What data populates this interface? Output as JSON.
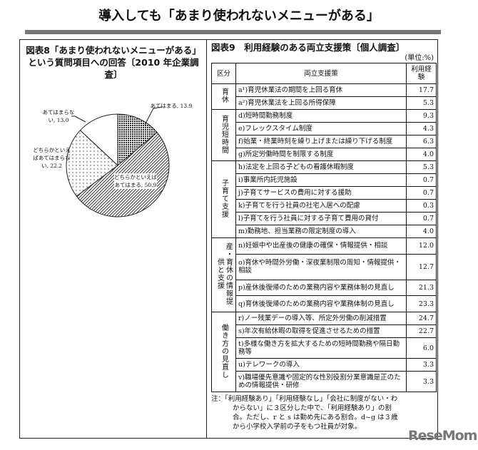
{
  "page_title": "導入しても「あまり使われないメニューがある」",
  "left": {
    "title": "図表8「あまり使われないメニューがある」という質問項目への回答〔2010 年企業調査〕"
  },
  "chart_data": {
    "type": "pie",
    "title": "図表8「あまり使われないメニューがある」という質問項目への回答〔2010 年企業調査〕",
    "slices": [
      {
        "label": "あてはまる",
        "value": 13.9,
        "text": "あてはまる, 13.9",
        "pattern": "crosshatch"
      },
      {
        "label": "どちらかといえばあてはまる",
        "value": 50.9,
        "text": "どちらかといえばあてはまる, 50.9",
        "pattern": "diagonal"
      },
      {
        "label": "どちらかといえばあてはまらない",
        "value": 22.2,
        "text": "どちらかといえばあてはまらない, 22.2",
        "pattern": "dots"
      },
      {
        "label": "あてはまらない",
        "value": 13.0,
        "text": "あてはまらない, 13.0",
        "pattern": "none"
      }
    ]
  },
  "right": {
    "title": "図表9　利用経験のある両立支援策〔個人調査〕",
    "unit": "(単位:%)",
    "headers": [
      "区分",
      "両立支援策",
      "利用経験"
    ],
    "groups": [
      {
        "name": "育休",
        "rows": [
          [
            "a¹)育児休業法の期間を上回る育休",
            "17.7"
          ],
          [
            "a²)育児休業法を上回る所得保障",
            "5.3"
          ]
        ]
      },
      {
        "name": "育児短時間",
        "rows": [
          [
            "d)短時間勤務制度",
            "9.3"
          ],
          [
            "e)フレックスタイム制度",
            "4.3"
          ],
          [
            "f)始業・終業時刻を繰り上げまたは繰り下げる制度",
            "6.3"
          ],
          [
            "g)所定労働時間を制限する制度",
            "4.0"
          ]
        ]
      },
      {
        "name": "子育て支援",
        "rows": [
          [
            "h)法定を上回る子どもの看護休暇制度",
            "5.3"
          ],
          [
            "i)事業所内託児施設",
            "0.7"
          ],
          [
            "j)子育てサービスの費用に対する援助",
            "0.7"
          ],
          [
            "k)子育てを行う社員の社宅入居への配慮",
            "0.3"
          ],
          [
            "l)子育てを行う社員に対する子育て費用の貸付",
            "0.7"
          ],
          [
            "m)勤務地、担当業務の限定制度の導入",
            "4.0"
          ]
        ]
      },
      {
        "name": "産・育休の情報提供と支援",
        "rows": [
          [
            "n)妊娠中や出産後の健康の確保・情報提供・相談",
            "12.0"
          ],
          [
            "o)育休や時間外労働・深夜業制限の周知・情報提供・相談",
            "12.7"
          ],
          [
            "p)産休後復帰のための業務内容や業務体制の見直し",
            "21.3"
          ],
          [
            "q)育休後復帰のための業務内容や業務体制の見直し",
            "23.3"
          ]
        ]
      },
      {
        "name": "働き方の見直し",
        "rows": [
          [
            "r)ノー残業デーの導入等、所定外労働の削減措置",
            "24.7"
          ],
          [
            "s)年次有給休暇の取得を促進させるための措置",
            "22.7"
          ],
          [
            "t)多様な働き方を拡大するための短時間勤務や隔日勤務等",
            "6.0"
          ],
          [
            "u)テレワークの導入",
            "3.3"
          ],
          [
            "v)職場優先意識や固定的な性別役割分業意識是正のための情報提供・研修",
            "3.3"
          ]
        ]
      }
    ],
    "note": "注：「利用経験あり」「利用経験なし」「会社に制度がない・わからない」に３区分した中で、「利用経験あり」の割合。ただし、r と s は勤め先にある割合。d~g は３歳から小学校入学前の子をもつ社員が対象。"
  },
  "logo": "ReseMom"
}
